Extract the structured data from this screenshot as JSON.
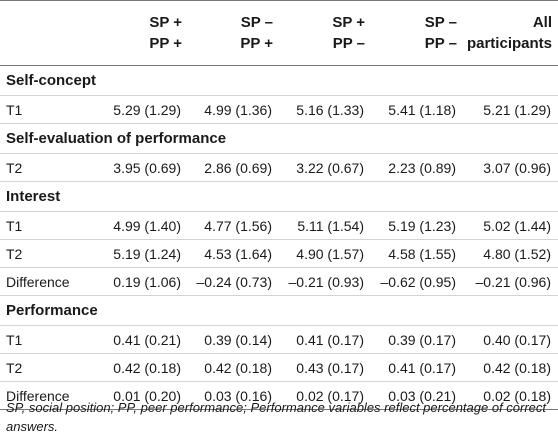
{
  "columns": [
    {
      "line1": "",
      "line2": ""
    },
    {
      "line1": "SP +",
      "line2": "PP +"
    },
    {
      "line1": "SP –",
      "line2": "PP +"
    },
    {
      "line1": "SP +",
      "line2": "PP –"
    },
    {
      "line1": "SP –",
      "line2": "PP –"
    },
    {
      "line1": "All",
      "line2": "participants"
    }
  ],
  "sections": [
    {
      "title": "Self-concept",
      "rows": [
        {
          "label": "T1",
          "values": [
            "5.29 (1.29)",
            "4.99 (1.36)",
            "5.16 (1.33)",
            "5.41 (1.18)",
            "5.21 (1.29)"
          ]
        }
      ]
    },
    {
      "title": "Self-evaluation of performance",
      "rows": [
        {
          "label": "T2",
          "values": [
            "3.95 (0.69)",
            "2.86 (0.69)",
            "3.22 (0.67)",
            "2.23 (0.89)",
            "3.07 (0.96)"
          ]
        }
      ]
    },
    {
      "title": "Interest",
      "rows": [
        {
          "label": "T1",
          "values": [
            "4.99 (1.40)",
            "4.77 (1.56)",
            "5.11 (1.54)",
            "5.19 (1.23)",
            "5.02 (1.44)"
          ]
        },
        {
          "label": "T2",
          "values": [
            "5.19 (1.24)",
            "4.53 (1.64)",
            "4.90 (1.57)",
            "4.58 (1.55)",
            "4.80 (1.52)"
          ]
        },
        {
          "label": "Difference",
          "values": [
            "0.19 (1.06)",
            "–0.24 (0.73)",
            "–0.21 (0.93)",
            "–0.62 (0.95)",
            "–0.21 (0.96)"
          ]
        }
      ]
    },
    {
      "title": "Performance",
      "rows": [
        {
          "label": "T1",
          "values": [
            "0.41 (0.21)",
            "0.39 (0.14)",
            "0.41 (0.17)",
            "0.39 (0.17)",
            "0.40 (0.17)"
          ]
        },
        {
          "label": "T2",
          "values": [
            "0.42 (0.18)",
            "0.42 (0.18)",
            "0.43 (0.17)",
            "0.41 (0.17)",
            "0.42 (0.18)"
          ]
        },
        {
          "label": "Difference",
          "values": [
            "0.01 (0.20)",
            "0.03 (0.16)",
            "0.02 (0.17)",
            "0.03 (0.21)",
            "0.02 (0.18)"
          ]
        }
      ]
    }
  ],
  "footnote": "SP, social position; PP, peer performance; Performance variables reflect percentage of correct answers."
}
